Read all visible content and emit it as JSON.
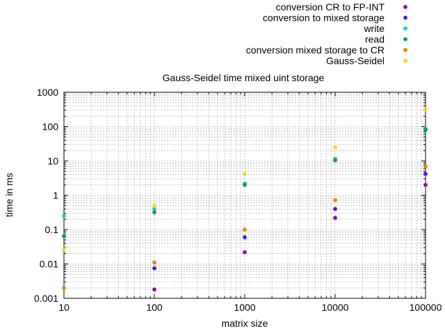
{
  "chart_data": {
    "type": "scatter",
    "title": "Gauss-Seidel time mixed uint storage",
    "xlabel": "matrix size",
    "ylabel": "time in ms",
    "xscale": "log",
    "yscale": "log",
    "xlim": [
      10,
      100000
    ],
    "ylim": [
      0.001,
      1000
    ],
    "grid": true,
    "legend_position": "top-right",
    "x_ticks": [
      {
        "value": 10,
        "label": "10"
      },
      {
        "value": 100,
        "label": "100"
      },
      {
        "value": 1000,
        "label": "1000"
      },
      {
        "value": 10000,
        "label": "10000"
      },
      {
        "value": 100000,
        "label": "100000"
      }
    ],
    "y_ticks": [
      {
        "value": 0.001,
        "label": "0.001"
      },
      {
        "value": 0.01,
        "label": "0.01"
      },
      {
        "value": 0.1,
        "label": "0.1"
      },
      {
        "value": 1,
        "label": "1"
      },
      {
        "value": 10,
        "label": "10"
      },
      {
        "value": 100,
        "label": "100"
      },
      {
        "value": 1000,
        "label": "1000"
      }
    ],
    "x": [
      10,
      100,
      1000,
      10000,
      100000
    ],
    "series": [
      {
        "name": "conversion CR to FP-INT",
        "color": "#94009f",
        "values": [
          null,
          0.0018,
          0.022,
          0.22,
          2.0
        ]
      },
      {
        "name": "conversion to mixed storage",
        "color": "#3a1fe0",
        "values": [
          null,
          0.0075,
          0.06,
          0.4,
          4.2
        ]
      },
      {
        "name": "write",
        "color": "#22c8d4",
        "values": [
          0.25,
          0.4,
          2.2,
          11.5,
          88
        ]
      },
      {
        "name": "read",
        "color": "#0a9f3e",
        "values": [
          0.065,
          0.32,
          2.0,
          10.5,
          80
        ]
      },
      {
        "name": "conversion mixed storage to CR",
        "color": "#e98200",
        "values": [
          0.002,
          0.011,
          0.1,
          0.72,
          7.0
        ]
      },
      {
        "name": "Gauss-Seidel",
        "color": "#f3d81c",
        "values": [
          0.027,
          0.5,
          4.2,
          25,
          320
        ]
      }
    ]
  }
}
